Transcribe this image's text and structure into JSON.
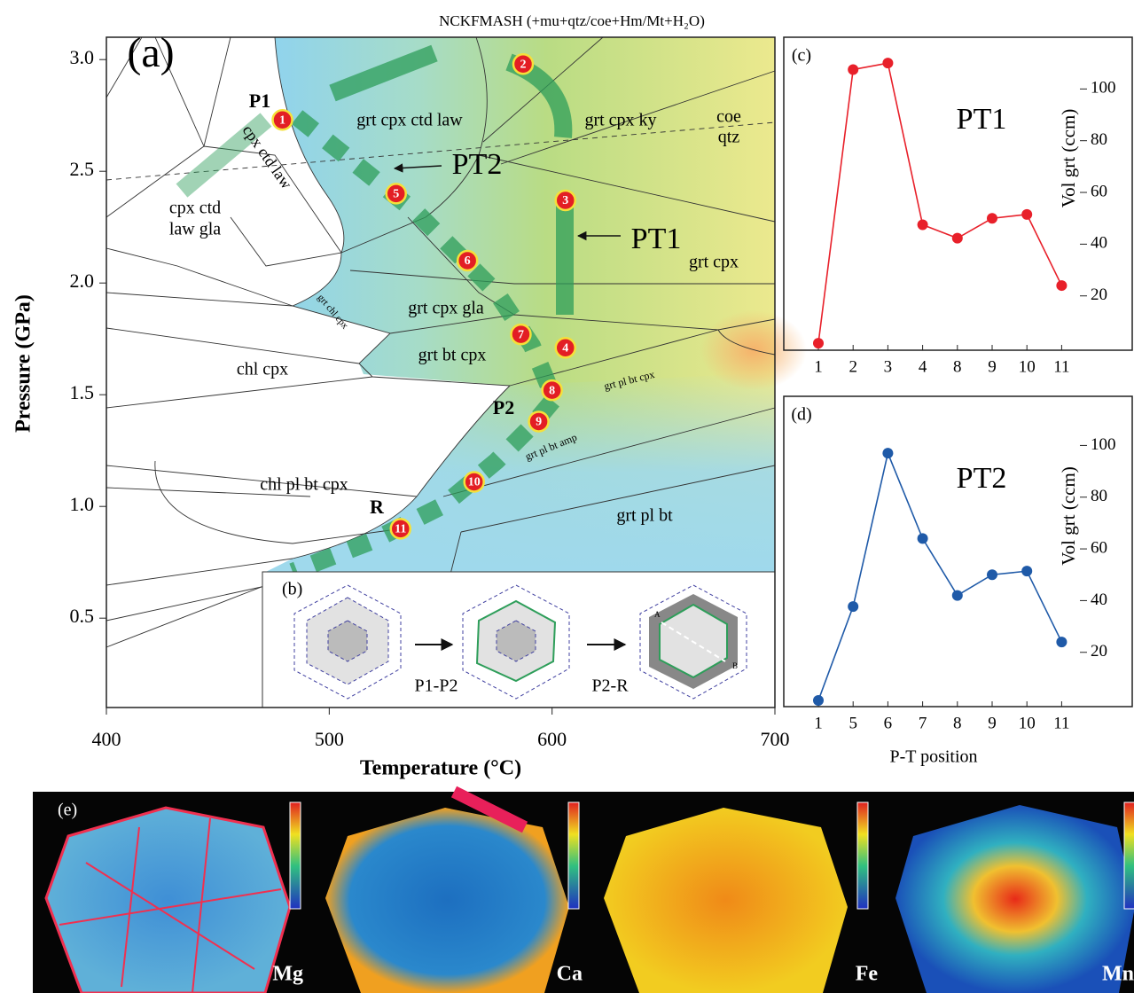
{
  "chart_data": [
    {
      "type": "scatter",
      "title": "NCKFMASH (+mu+qtz/coe+Hm/Mt+H₂O)",
      "panel_label": "(a)",
      "xlabel": "Temperature (°C)",
      "ylabel": "Pressure (GPa)",
      "xlim": [
        400,
        700
      ],
      "xticks": [
        400,
        500,
        600,
        700
      ],
      "ylim": [
        0.1,
        3.1
      ],
      "yticks": [
        0.5,
        {
          "value": 1,
          "label": "1.0"
        },
        1.5,
        {
          "value": 2,
          "label": "2.0"
        },
        2.5,
        {
          "value": 3,
          "label": "3.0"
        }
      ],
      "x": [
        479,
        587,
        606,
        606,
        530,
        562,
        586,
        600,
        594,
        565,
        532
      ],
      "values": [
        2.73,
        2.98,
        2.37,
        1.71,
        2.4,
        2.1,
        1.77,
        1.52,
        1.38,
        1.11,
        0.9
      ],
      "point_labels": [
        "1",
        "2",
        "3",
        "4",
        "5",
        "6",
        "7",
        "8",
        "9",
        "10",
        "11"
      ],
      "color": "#e31e24",
      "annotations": [
        "grt cpx ctd law",
        "grt cpx ky",
        "coe",
        "qtz",
        "cpx ctd",
        "law gla",
        "cpx ctd law",
        "grt cpx",
        "grt cpx gla",
        "grt chl cpx",
        "grt bt cpx",
        "chl cpx",
        "grt pl bt cpx",
        "grt pl bt amp",
        "chl pl bt cpx",
        "grt pl bt",
        "P1",
        "P2",
        "R",
        "PT1",
        "PT2"
      ]
    },
    {
      "type": "line",
      "panel_label": "(c)",
      "title": "PT1",
      "ylabel": "Vol grt (ccm)",
      "categories": [
        "1",
        "2",
        "3",
        "4",
        "8",
        "9",
        "10",
        "11"
      ],
      "values": [
        1.7,
        107.5,
        110,
        47.5,
        42.3,
        50,
        51.5,
        24
      ],
      "color": "#e8202a",
      "ylim": [
        -1,
        120
      ],
      "yticks": [
        20,
        40,
        60,
        80,
        100
      ]
    },
    {
      "type": "line",
      "panel_label": "(d)",
      "title": "PT2",
      "ylabel": "Vol grt (ccm)",
      "xlabel": "P-T position",
      "categories": [
        "1",
        "5",
        "6",
        "7",
        "8",
        "9",
        "10",
        "11"
      ],
      "values": [
        1.4,
        37.7,
        97,
        64,
        42,
        50,
        51.4,
        24
      ],
      "color": "#1f5aa8",
      "ylim": [
        -1,
        119
      ],
      "yticks": [
        20,
        40,
        60,
        80,
        100
      ]
    }
  ],
  "inset": {
    "label": "(b)",
    "steps": [
      "P1-P2",
      "P2-R"
    ],
    "ends": [
      "A",
      "B"
    ]
  },
  "maps": {
    "label": "(e)",
    "elements": [
      "Mg",
      "Ca",
      "Fe",
      "Mn"
    ]
  }
}
